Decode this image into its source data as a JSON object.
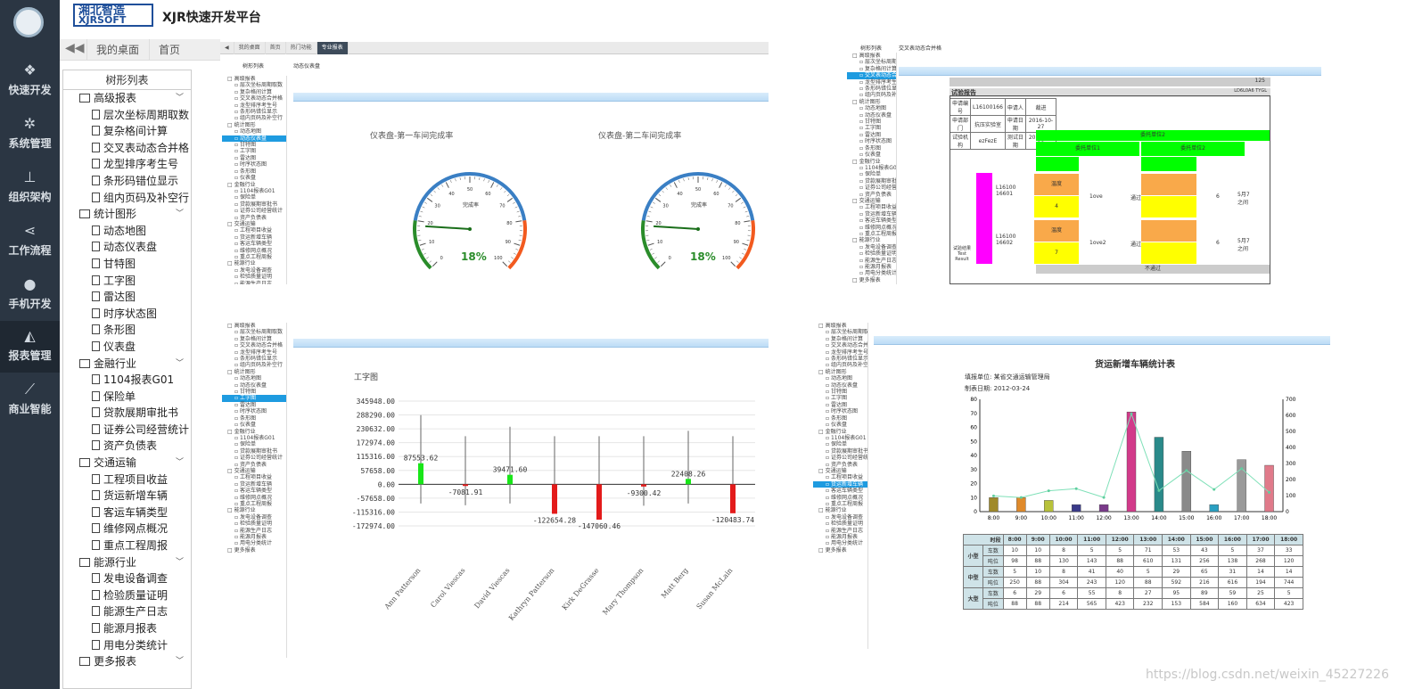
{
  "app": {
    "brand_cn": "湘北智造",
    "brand_en": "XJRSOFT",
    "title": "XJR快速开发平台"
  },
  "nav": [
    {
      "label": "快速开发",
      "icon": "cubes-icon"
    },
    {
      "label": "系统管理",
      "icon": "gears-icon"
    },
    {
      "label": "组织架构",
      "icon": "sitemap-icon"
    },
    {
      "label": "工作流程",
      "icon": "share-icon"
    },
    {
      "label": "手机开发",
      "icon": "android-icon"
    },
    {
      "label": "报表管理",
      "icon": "area-chart-icon"
    },
    {
      "label": "商业智能",
      "icon": "line-chart-icon"
    }
  ],
  "tabs": {
    "back": "◀◀",
    "desktop": "我的桌面",
    "home": "首页"
  },
  "tree": {
    "title": "树形列表",
    "items": [
      {
        "t": "f",
        "label": "高级报表"
      },
      {
        "t": "l",
        "label": "层次坐标周期取数"
      },
      {
        "t": "l",
        "label": "复杂格间计算"
      },
      {
        "t": "l",
        "label": "交叉表动态合并格"
      },
      {
        "t": "l",
        "label": "龙型排序考生号"
      },
      {
        "t": "l",
        "label": "条形码错位显示"
      },
      {
        "t": "l",
        "label": "组内页码及补空行"
      },
      {
        "t": "f",
        "label": "统计图形"
      },
      {
        "t": "l",
        "label": "动态地图"
      },
      {
        "t": "l",
        "label": "动态仪表盘"
      },
      {
        "t": "l",
        "label": "甘特图"
      },
      {
        "t": "l",
        "label": "工字图"
      },
      {
        "t": "l",
        "label": "雷达图"
      },
      {
        "t": "l",
        "label": "时序状态图"
      },
      {
        "t": "l",
        "label": "条形图"
      },
      {
        "t": "l",
        "label": "仪表盘"
      },
      {
        "t": "f",
        "label": "金融行业"
      },
      {
        "t": "l",
        "label": "1104报表G01"
      },
      {
        "t": "l",
        "label": "保险单"
      },
      {
        "t": "l",
        "label": "贷款展期审批书"
      },
      {
        "t": "l",
        "label": "证券公司经营统计"
      },
      {
        "t": "l",
        "label": "资产负债表"
      },
      {
        "t": "f",
        "label": "交通运输"
      },
      {
        "t": "l",
        "label": "工程项目收益"
      },
      {
        "t": "l",
        "label": "货运新增车辆"
      },
      {
        "t": "l",
        "label": "客运车辆类型"
      },
      {
        "t": "l",
        "label": "维修网点概况"
      },
      {
        "t": "l",
        "label": "重点工程周报"
      },
      {
        "t": "f",
        "label": "能源行业"
      },
      {
        "t": "l",
        "label": "发电设备调查"
      },
      {
        "t": "l",
        "label": "检验质量证明"
      },
      {
        "t": "l",
        "label": "能源生产日志"
      },
      {
        "t": "l",
        "label": "能源月报表"
      },
      {
        "t": "l",
        "label": "用电分类统计"
      },
      {
        "t": "f",
        "label": "更多报表"
      }
    ]
  },
  "gauge_panel": {
    "tabs": [
      "我的桌面",
      "首页",
      "热门功能",
      "专业报表"
    ],
    "tree_title": "树形列表",
    "crumb": "动态仪表盘",
    "gauge1": {
      "title": "仪表盘-第一车间完成率",
      "center": "完成率",
      "value": "18%"
    },
    "gauge2": {
      "title": "仪表盘-第二车间完成率",
      "center": "完成率",
      "value": "18%"
    },
    "ticks": [
      "0",
      "10",
      "20",
      "30",
      "40",
      "50",
      "60",
      "70",
      "80",
      "90",
      "100"
    ]
  },
  "report_panel": {
    "tree_title": "树形列表",
    "crumb": "交叉表动态合并格",
    "title": "试验报告",
    "rows": [
      [
        "申请编号",
        "L16100166",
        "申请人",
        "裁进"
      ],
      [
        "申请部门",
        "抗压实验室",
        "申请日期",
        "2016-10-27"
      ],
      [
        "试验机构",
        "ezFezE",
        "测试日期",
        "2016-10-28"
      ]
    ],
    "h1": "委托单位2",
    "h2a": "委托单位1",
    "h2b": "委托单位2",
    "sample1": "L16100 16601",
    "sample2": "L16100 16602",
    "cellA": "温度",
    "cellB": "4",
    "cellC": "7",
    "cellD": "1ove",
    "cellE": "1ove2",
    "pass": "通过",
    "six": "6",
    "label5": "5月7之间",
    "result_label": "试验结果 Test Result",
    "not_pass": "不通过",
    "p125": "125",
    "id_code": "LD6L0A6 TYGL"
  },
  "ichart_panel": {
    "title": "工字图",
    "chart_data": {
      "type": "bar",
      "title": "工字图",
      "categories": [
        "Ann Patterson",
        "Carol Viescas",
        "David Viescas",
        "Kathryn Patterson",
        "Kirk DeGrasse",
        "Mary Thompson",
        "Matt Berg",
        "Susan McLain"
      ],
      "values": [
        87553.62,
        -7081.91,
        39471.6,
        -122654.28,
        -147060.46,
        -9300.42,
        22408.26,
        -120483.74
      ],
      "yticks": [
        "345948.00",
        "288290.00",
        "230632.00",
        "172974.00",
        "115316.00",
        "57658.00",
        "0.00",
        "-57658.00",
        "-115316.00",
        "-172974.00"
      ],
      "ylim": [
        -172974,
        345948
      ]
    }
  },
  "freight_panel": {
    "title": "货运新增车辆统计表",
    "unit": "填报单位: 某省交通运输管理局",
    "date": "制表日期: 2012-03-24",
    "chart_data": {
      "type": "bar",
      "categories": [
        "8:00",
        "9:00",
        "10:00",
        "11:00",
        "12:00",
        "13:00",
        "14:00",
        "15:00",
        "16:00",
        "17:00",
        "18:00"
      ],
      "values": [
        10,
        10,
        8,
        5,
        5,
        71,
        53,
        43,
        5,
        37,
        33
      ],
      "line": [
        98,
        88,
        130,
        143,
        88,
        610,
        131,
        256,
        138,
        268,
        120
      ],
      "ylim_left": [
        0,
        80
      ],
      "ylim_right": [
        0,
        700
      ],
      "yticks_left": [
        "0",
        "10",
        "20",
        "30",
        "40",
        "50",
        "60",
        "70",
        "80"
      ],
      "yticks_right": [
        "0",
        "100",
        "200",
        "300",
        "400",
        "500",
        "600",
        "700"
      ]
    },
    "table": {
      "corner": "时段",
      "hours": [
        "8:00",
        "9:00",
        "10:00",
        "11:00",
        "12:00",
        "13:00",
        "14:00",
        "15:00",
        "16:00",
        "17:00",
        "18:00"
      ],
      "groups": [
        {
          "name": "小型",
          "rows": [
            [
              "车数",
              "10",
              "10",
              "8",
              "5",
              "5",
              "71",
              "53",
              "43",
              "5",
              "37",
              "33"
            ],
            [
              "吨位",
              "98",
              "88",
              "130",
              "143",
              "88",
              "610",
              "131",
              "256",
              "138",
              "268",
              "120"
            ]
          ]
        },
        {
          "name": "中型",
          "rows": [
            [
              "车数",
              "5",
              "10",
              "8",
              "41",
              "40",
              "5",
              "29",
              "65",
              "31",
              "14",
              "14"
            ],
            [
              "吨位",
              "250",
              "88",
              "304",
              "243",
              "120",
              "88",
              "592",
              "216",
              "616",
              "194",
              "744"
            ]
          ]
        },
        {
          "name": "大型",
          "rows": [
            [
              "车数",
              "6",
              "29",
              "6",
              "55",
              "8",
              "27",
              "95",
              "89",
              "59",
              "25",
              "5"
            ],
            [
              "吨位",
              "88",
              "88",
              "214",
              "565",
              "423",
              "232",
              "153",
              "584",
              "160",
              "634",
              "423"
            ]
          ]
        }
      ]
    }
  },
  "watermark": "https://blog.csdn.net/weixin_45227226"
}
